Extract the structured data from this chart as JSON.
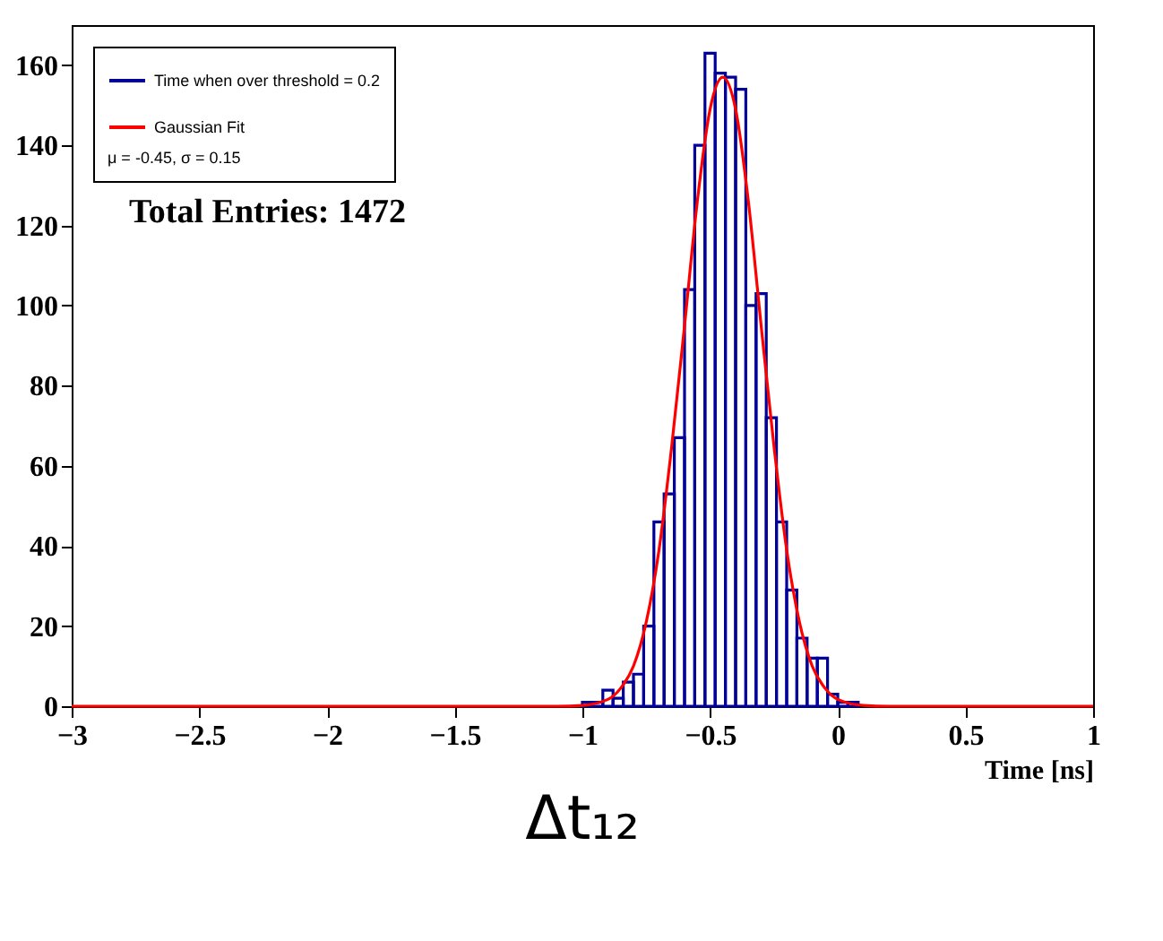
{
  "chart_data": {
    "type": "histogram",
    "title": "Δt₁₂",
    "xlabel": "Time [ns]",
    "legend_title": "μ = -0.45,   σ = 0.15",
    "legend": "top left",
    "grid": false,
    "annotations": [
      "Total Entries: 1472"
    ],
    "xlim": [
      -3,
      1
    ],
    "xticks": [
      -3,
      -2.5,
      -2,
      -1.5,
      -1,
      -0.5,
      0,
      0.5,
      1
    ],
    "ylim": [
      0,
      170
    ],
    "yticks": [
      0,
      20,
      40,
      60,
      80,
      100,
      120,
      140,
      160
    ],
    "series": [
      {
        "name": "Time when over threshold = 0.2",
        "color": "#000099",
        "bins": [
          -1.0,
          -0.96,
          -0.92,
          -0.88,
          -0.84,
          -0.8,
          -0.76,
          -0.72,
          -0.68,
          -0.64,
          -0.6,
          -0.56,
          -0.52,
          -0.48,
          -0.44,
          -0.4,
          -0.36,
          -0.32,
          -0.28,
          -0.24,
          -0.2,
          -0.16,
          -0.12,
          -0.08,
          -0.04,
          0.0,
          0.04,
          0.08
        ],
        "values": [
          1,
          1,
          4,
          2,
          6,
          8,
          20,
          46,
          53,
          67,
          104,
          140,
          163,
          158,
          157,
          154,
          100,
          103,
          72,
          46,
          29,
          17,
          12,
          12,
          3,
          1,
          1
        ]
      },
      {
        "name": "Gaussian Fit",
        "color": "#ff0000",
        "type": "line",
        "x": [
          -3,
          -1.1,
          -1.0,
          -0.9,
          -0.85,
          -0.8,
          -0.75,
          -0.7,
          -0.65,
          -0.6,
          -0.55,
          -0.5,
          -0.45,
          -0.4,
          -0.35,
          -0.3,
          -0.25,
          -0.2,
          -0.15,
          -0.1,
          -0.05,
          0,
          0.1,
          0.2,
          1
        ],
        "values": [
          0,
          0,
          0.2,
          1.7,
          4.5,
          10,
          21,
          39,
          65,
          95,
          126,
          149,
          157,
          149,
          126,
          95,
          65,
          39,
          21,
          10,
          4.5,
          1.7,
          0.2,
          0,
          0
        ]
      }
    ]
  }
}
